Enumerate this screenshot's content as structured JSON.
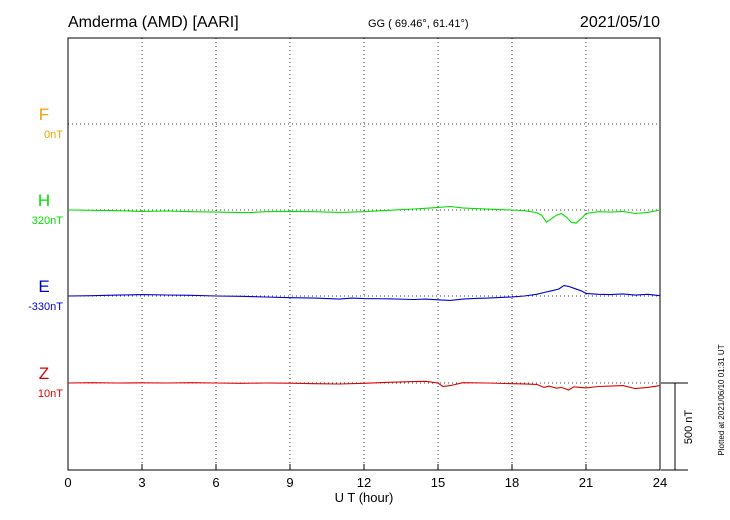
{
  "header": {
    "station": "Amderma (AMD)  [AARI]",
    "coords": "GG ( 69.46°,  61.41°)",
    "date": "2021/05/10"
  },
  "footer_note": "Plotted at 2021/06/10 01:31  UT",
  "scale_label": "500 nT",
  "colors": {
    "F": "#f0a000",
    "H": "#00e000",
    "E": "#0000d0",
    "Z": "#e00000",
    "grid": "#000000"
  },
  "chart_data": {
    "type": "line",
    "xlabel": "U T (hour)",
    "xlim": [
      0,
      24
    ],
    "xticks": [
      "0",
      "3",
      "6",
      "9",
      "12",
      "15",
      "18",
      "21",
      "24"
    ],
    "scale_nT": 500,
    "series": [
      {
        "name": "F",
        "baseline_label": "0nT",
        "color": "#f0a000",
        "values": []
      },
      {
        "name": "H",
        "baseline_label": "320nT",
        "color": "#00e000",
        "x": [
          0,
          1,
          2,
          3,
          4,
          5,
          6,
          7,
          7.5,
          8,
          9,
          10,
          11,
          12,
          13,
          14,
          14.5,
          15,
          15.5,
          16,
          16.5,
          17,
          18,
          18.5,
          19,
          19.2,
          19.4,
          19.6,
          19.8,
          20,
          20.2,
          20.4,
          20.6,
          20.8,
          21,
          21.5,
          22,
          22.5,
          23,
          23.5,
          24
        ],
        "values": [
          320,
          318,
          316,
          312,
          314,
          310,
          308,
          305,
          306,
          310,
          312,
          310,
          306,
          310,
          318,
          326,
          330,
          335,
          340,
          332,
          328,
          325,
          320,
          316,
          305,
          290,
          250,
          270,
          290,
          300,
          280,
          250,
          245,
          270,
          300,
          310,
          308,
          312,
          300,
          306,
          320
        ]
      },
      {
        "name": "E",
        "baseline_label": "-330nT",
        "color": "#0000d0",
        "x": [
          0,
          1,
          2,
          3,
          4,
          5,
          6,
          7,
          8,
          9,
          10,
          11,
          11.5,
          12,
          13,
          14,
          14.5,
          15,
          15.5,
          16,
          16.5,
          17,
          18,
          18.5,
          19,
          19.3,
          19.6,
          19.9,
          20.1,
          20.3,
          20.5,
          20.8,
          21,
          21.5,
          22,
          22.5,
          23,
          23.5,
          24
        ],
        "values": [
          -330,
          -328,
          -325,
          -322,
          -324,
          -326,
          -330,
          -332,
          -336,
          -340,
          -342,
          -348,
          -342,
          -345,
          -346,
          -350,
          -348,
          -352,
          -355,
          -348,
          -344,
          -342,
          -335,
          -330,
          -320,
          -310,
          -300,
          -290,
          -270,
          -275,
          -285,
          -300,
          -315,
          -320,
          -322,
          -318,
          -325,
          -320,
          -328
        ]
      },
      {
        "name": "Z",
        "baseline_label": "10nT",
        "color": "#e00000",
        "x": [
          0,
          1,
          2,
          3,
          4,
          5,
          6,
          7,
          8,
          9,
          10,
          11,
          12,
          13,
          14,
          14.5,
          15,
          15.2,
          15.5,
          16,
          17,
          18,
          18.5,
          19,
          19.3,
          19.5,
          19.8,
          20,
          20.3,
          20.5,
          21,
          21.5,
          22,
          22.5,
          23,
          23.5,
          24
        ],
        "values": [
          10,
          12,
          10,
          11,
          10,
          12,
          10,
          8,
          10,
          9,
          6,
          4,
          8,
          14,
          18,
          20,
          10,
          -10,
          -5,
          12,
          10,
          6,
          5,
          2,
          -15,
          -8,
          -20,
          -15,
          -30,
          -12,
          -18,
          -10,
          -8,
          -5,
          -22,
          -15,
          -5
        ]
      }
    ]
  }
}
